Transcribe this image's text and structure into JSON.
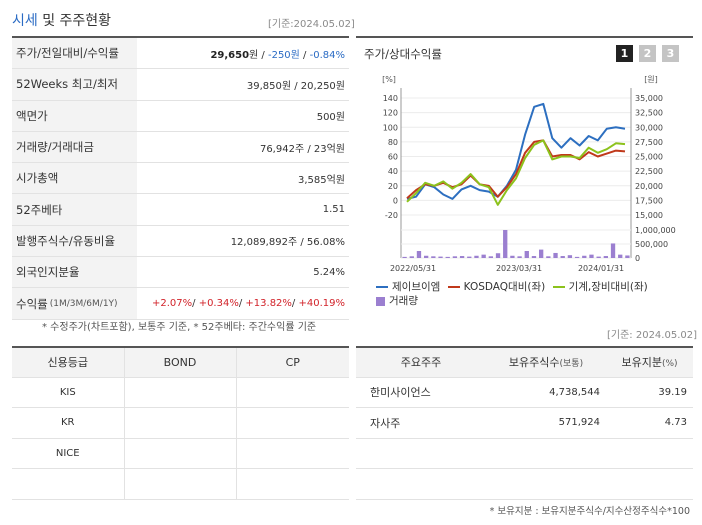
{
  "header": {
    "title_highlight": "시세",
    "title_rest": " 및 주주현황",
    "base_date": "[기준:2024.05.02]"
  },
  "price_table": [
    {
      "key": "주가/전일대비/수익률",
      "value_bold": "29,650",
      "value_unit": "원",
      "change": "-250원",
      "rate": "-0.84%"
    },
    {
      "key": "52Weeks 최고/최저",
      "value": "39,850원 / 20,250원"
    },
    {
      "key": "액면가",
      "value": "500원"
    },
    {
      "key": "거래량/거래대금",
      "value": "76,942주 / 23억원"
    },
    {
      "key": "시가총액",
      "value": "3,585억원"
    },
    {
      "key": "52주베타",
      "value": "1.51"
    },
    {
      "key": "발행주식수/유동비율",
      "value": "12,089,892주 / 56.08%"
    },
    {
      "key": "외국인지분율",
      "value": "5.24%"
    },
    {
      "key": "수익률",
      "key_small": "(1M/3M/6M/1Y)",
      "returns": [
        "+2.07%",
        "+0.34%",
        "+13.82%",
        "+40.19%"
      ]
    }
  ],
  "note_left": "* 수정주가(차트포함), 보통주 기준, * 52주베타: 주간수익률 기준",
  "chart_panel": {
    "title": "주가/상대수익률",
    "tabs": [
      "1",
      "2",
      "3"
    ],
    "active_tab": 0,
    "legend": [
      {
        "label": "제이브이엠",
        "color": "#2d6fc0",
        "kind": "line"
      },
      {
        "label": "KOSDAQ대비(좌)",
        "color": "#c0391b",
        "kind": "line"
      },
      {
        "label": "기계,장비대비(좌)",
        "color": "#8cc21c",
        "kind": "line"
      },
      {
        "label": "거래량",
        "color": "#9b7fd0",
        "kind": "bar"
      }
    ]
  },
  "chart_data": {
    "type": "line",
    "left_unit": "[%]",
    "right_unit": "[원]",
    "left_ticks": [
      "140",
      "120",
      "100",
      "80",
      "60",
      "40",
      "20",
      "0",
      "-20"
    ],
    "right_ticks": [
      "35,000",
      "32,500",
      "30,000",
      "27,500",
      "25,000",
      "22,500",
      "20,000",
      "17,500",
      "15,000"
    ],
    "ylim_left": [
      -20,
      140
    ],
    "ylim_right": [
      15000,
      35000
    ],
    "volume_ticks": [
      "1,000,000",
      "500,000",
      "0"
    ],
    "volume_ylim": [
      0,
      1000000
    ],
    "x_labels": [
      "2022/05/31",
      "2023/03/31",
      "2024/01/31"
    ],
    "series": [
      {
        "name": "제이브이엠",
        "color": "#2d6fc0",
        "values": [
          2,
          5,
          22,
          18,
          8,
          2,
          15,
          20,
          14,
          12,
          5,
          20,
          42,
          90,
          128,
          132,
          85,
          72,
          85,
          75,
          88,
          82,
          98,
          100,
          98
        ]
      },
      {
        "name": "KOSDAQ대비(좌)",
        "color": "#c0391b",
        "values": [
          3,
          14,
          22,
          20,
          24,
          18,
          22,
          34,
          22,
          20,
          5,
          18,
          36,
          65,
          80,
          82,
          60,
          62,
          62,
          56,
          66,
          60,
          64,
          68,
          67
        ]
      },
      {
        "name": "기계,장비대비(좌)",
        "color": "#8cc21c",
        "values": [
          -2,
          10,
          24,
          20,
          26,
          16,
          24,
          36,
          22,
          18,
          -6,
          14,
          30,
          58,
          76,
          82,
          56,
          60,
          60,
          58,
          72,
          65,
          70,
          78,
          77
        ]
      }
    ],
    "volume": [
      40000,
      60000,
      250000,
      80000,
      60000,
      50000,
      40000,
      60000,
      70000,
      50000,
      80000,
      120000,
      60000,
      170000,
      1000000,
      80000,
      60000,
      250000,
      70000,
      300000,
      60000,
      180000,
      70000,
      100000,
      40000,
      80000,
      120000,
      50000,
      70000,
      520000,
      120000,
      90000
    ]
  },
  "base_date_right": "[기준: 2024.05.02]",
  "credit_table": {
    "headers": [
      "신용등급",
      "BOND",
      "CP"
    ],
    "rows": [
      [
        "KIS",
        "",
        ""
      ],
      [
        "KR",
        "",
        ""
      ],
      [
        "NICE",
        "",
        ""
      ],
      [
        "",
        "",
        ""
      ]
    ]
  },
  "holder_table": {
    "headers": [
      "주요주주",
      "보유주식수",
      "(보통)",
      "보유지분",
      "(%)"
    ],
    "rows": [
      [
        "한미사이언스",
        "4,738,544",
        "39.19"
      ],
      [
        "자사주",
        "571,924",
        "4.73"
      ],
      [
        "",
        "",
        ""
      ],
      [
        "",
        "",
        ""
      ]
    ]
  },
  "note_right": "* 보유지분 : 보유지분주식수/지수산정주식수*100"
}
